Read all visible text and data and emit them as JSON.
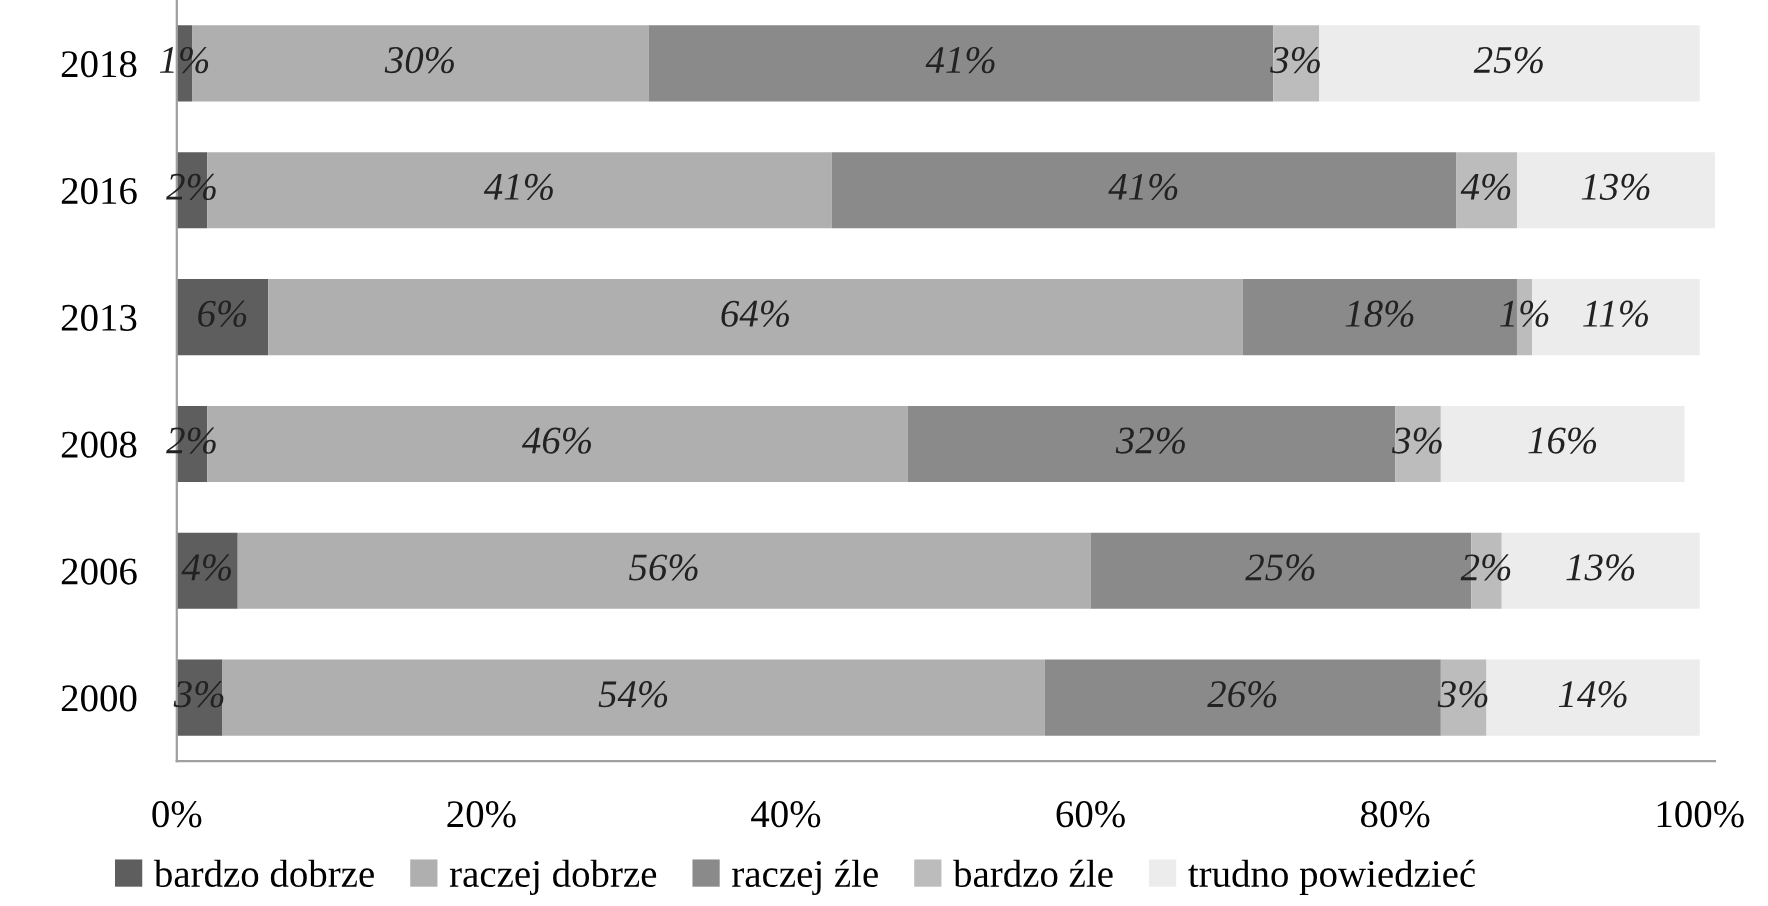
{
  "chart_data": {
    "type": "bar",
    "orientation": "horizontal",
    "stacked": true,
    "legend": "bottom",
    "grid": false,
    "categories": [
      "2018",
      "2016",
      "2013",
      "2008",
      "2006",
      "2000"
    ],
    "series": [
      {
        "name": "bardzo dobrze",
        "color": "#5e5e5e",
        "values": [
          1,
          2,
          6,
          2,
          4,
          3
        ],
        "value_labels": [
          "1%",
          "2%",
          "6%",
          "2%",
          "4%",
          "3%"
        ]
      },
      {
        "name": "raczej dobrze",
        "color": "#afafaf",
        "values": [
          30,
          41,
          64,
          46,
          56,
          54
        ],
        "value_labels": [
          "30%",
          "41%",
          "64%",
          "46%",
          "56%",
          "54%"
        ]
      },
      {
        "name": "raczej źle",
        "color": "#8a8a8a",
        "values": [
          41,
          41,
          18,
          32,
          25,
          26
        ],
        "value_labels": [
          "41%",
          "41%",
          "18%",
          "32%",
          "25%",
          "26%"
        ]
      },
      {
        "name": "bardzo źle",
        "color": "#bcbcbc",
        "values": [
          3,
          4,
          1,
          3,
          2,
          3
        ],
        "value_labels": [
          "3%",
          "4%",
          "1%",
          "3%",
          "2%",
          "3%"
        ]
      },
      {
        "name": "trudno powiedzieć",
        "color": "#ececec",
        "values": [
          25,
          13,
          11,
          16,
          13,
          14
        ],
        "value_labels": [
          "25%",
          "13%",
          "11%",
          "16%",
          "13%",
          "14%"
        ]
      }
    ],
    "xlim": [
      0,
      101
    ],
    "xticks": [
      {
        "value": 0,
        "label": "0%"
      },
      {
        "value": 20,
        "label": "20%"
      },
      {
        "value": 40,
        "label": "40%"
      },
      {
        "value": 60,
        "label": "60%"
      },
      {
        "value": 80,
        "label": "80%"
      },
      {
        "value": 100,
        "label": "100%"
      }
    ]
  }
}
